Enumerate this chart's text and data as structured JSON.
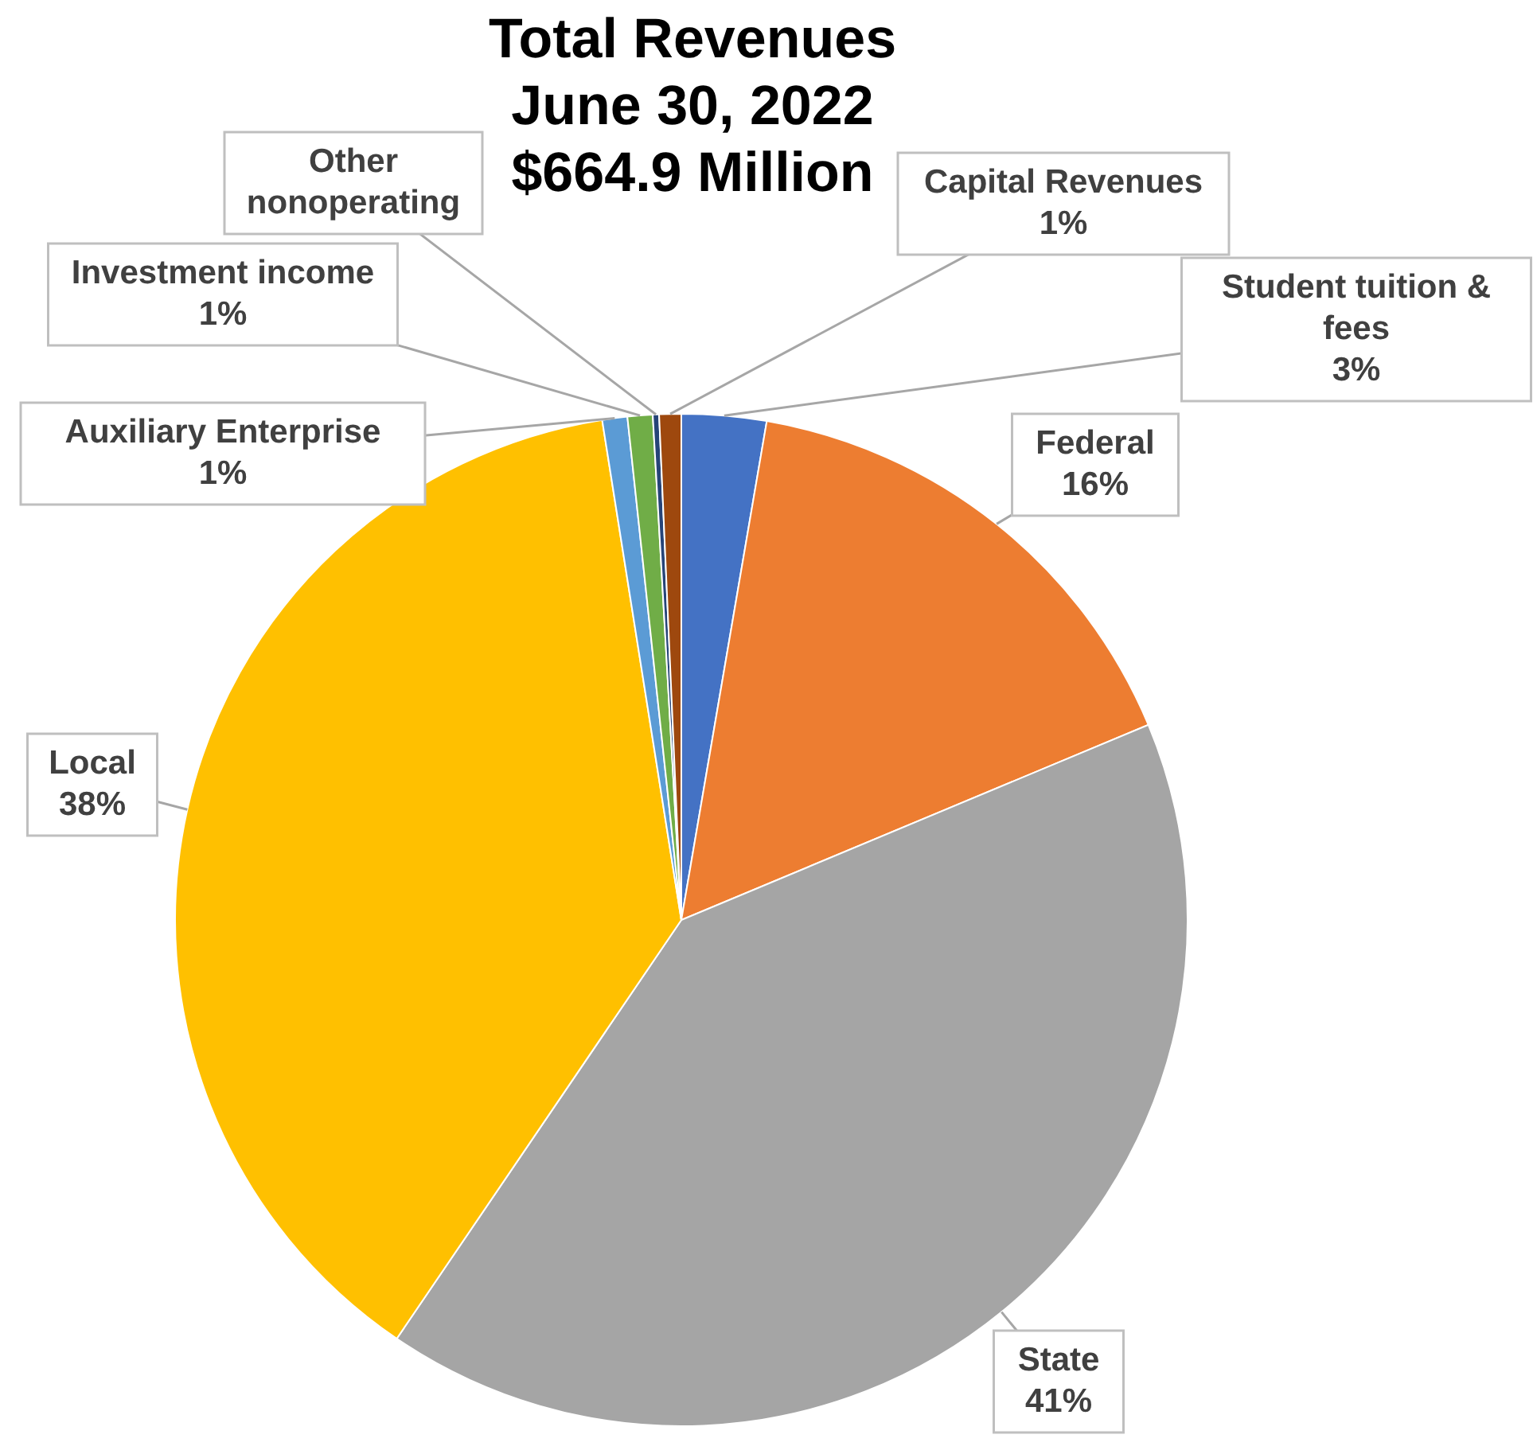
{
  "chart_data": {
    "type": "pie",
    "title": "Total Revenues\nJune 30, 2022\n$664.9 Million",
    "categories": [
      "Student tuition & fees",
      "Federal",
      "State",
      "Local",
      "Auxiliary Enterprise",
      "Investment income",
      "Other nonoperating",
      "Capital Revenues"
    ],
    "values": [
      2.7,
      16.0,
      40.8,
      38.0,
      0.8,
      0.8,
      0.2,
      0.7
    ],
    "value_labels": [
      "3%",
      "16%",
      "41%",
      "38%",
      "1%",
      "1%",
      null,
      "1%"
    ],
    "colors": [
      "#4472c4",
      "#ed7d31",
      "#a5a5a5",
      "#ffc000",
      "#5b9bd5",
      "#70ad47",
      "#264478",
      "#9e480e"
    ]
  }
}
